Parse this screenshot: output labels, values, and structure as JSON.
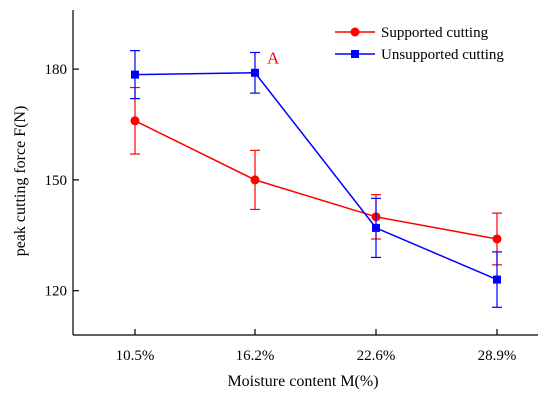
{
  "chart_data": {
    "type": "line",
    "xlabel": "Moisture content M(%)",
    "ylabel": "peak cutting force F(N)",
    "categories": [
      "10.5%",
      "16.2%",
      "22.6%",
      "28.9%"
    ],
    "ylim": [
      108,
      196
    ],
    "yticks": [
      120,
      150,
      180
    ],
    "grid": false,
    "legend_position": "top-right",
    "series": [
      {
        "name": "Supported cutting",
        "color": "#ff0000",
        "marker": "circle",
        "values": [
          166,
          150,
          140,
          134
        ],
        "error": [
          9,
          8,
          6,
          7
        ]
      },
      {
        "name": "Unsupported cutting",
        "color": "#0000ff",
        "marker": "square",
        "values": [
          178.5,
          179,
          137,
          123
        ],
        "error": [
          6.5,
          5.5,
          8,
          7.5
        ]
      }
    ],
    "annotations": [
      {
        "text": "A",
        "category": "16.2%",
        "value": 182,
        "color": "#ff0000"
      }
    ]
  }
}
